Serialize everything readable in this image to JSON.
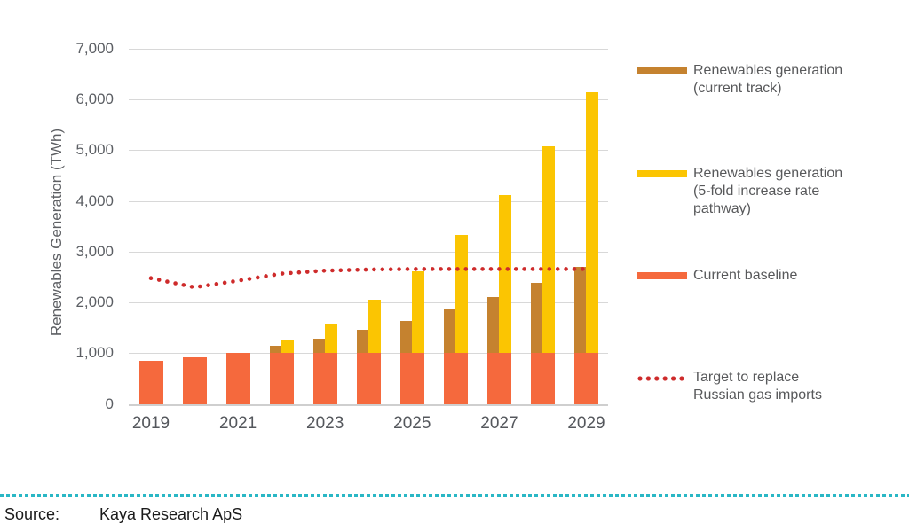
{
  "chart_data": {
    "type": "bar",
    "title": "",
    "ylabel": "Renewables Generation (TWh)",
    "ylim": [
      0,
      7000
    ],
    "ytick_interval": 1000,
    "ytick_labels": [
      "0",
      "1,000",
      "2,000",
      "3,000",
      "4,000",
      "5,000",
      "6,000",
      "7,000"
    ],
    "categories": [
      2019,
      2020,
      2021,
      2022,
      2023,
      2024,
      2025,
      2026,
      2027,
      2028,
      2029
    ],
    "xtick_labels": [
      "2019",
      "2021",
      "2023",
      "2025",
      "2027",
      "2029"
    ],
    "grid": true,
    "legend_position": "right",
    "series": [
      {
        "name": "Renewables generation (current track)",
        "type": "bar",
        "color": "#C5822F",
        "values": [
          null,
          null,
          null,
          1150,
          1300,
          1470,
          1650,
          1870,
          2120,
          2390,
          2700
        ]
      },
      {
        "name": "Renewables generation (5-fold increase rate pathway)",
        "type": "bar",
        "color": "#FBC502",
        "values": [
          null,
          null,
          null,
          1250,
          1590,
          2060,
          2620,
          3330,
          4130,
          5080,
          6150
        ]
      },
      {
        "name": "Current baseline",
        "type": "bar",
        "color": "#F5693D",
        "values": [
          850,
          930,
          1020,
          1020,
          1020,
          1020,
          1020,
          1020,
          1020,
          1020,
          1020
        ]
      },
      {
        "name": "Target to replace Russian gas imports",
        "type": "dotted-line",
        "color": "#CE2B2B",
        "values": [
          2480,
          2300,
          2430,
          2570,
          2630,
          2650,
          2660,
          2660,
          2660,
          2660,
          2660
        ]
      }
    ]
  },
  "legend": {
    "items": [
      {
        "label": "Renewables generation\n(current track)",
        "swatch": "bar",
        "color": "#C5822F"
      },
      {
        "label": "Renewables generation\n(5-fold increase rate\npathway)",
        "swatch": "bar",
        "color": "#FBC502"
      },
      {
        "label": "Current baseline",
        "swatch": "bar",
        "color": "#F5693D"
      },
      {
        "label": "Target to replace\nRussian gas imports",
        "swatch": "dots",
        "color": "#CE2B2B"
      }
    ]
  },
  "footer": {
    "source_label": "Source:",
    "source_value": "Kaya Research ApS"
  },
  "colors": {
    "accent_teal": "#2AB7C5",
    "grid": "#D8D8D8",
    "axis_text": "#5B5E63",
    "legend_text": "#58595B"
  }
}
